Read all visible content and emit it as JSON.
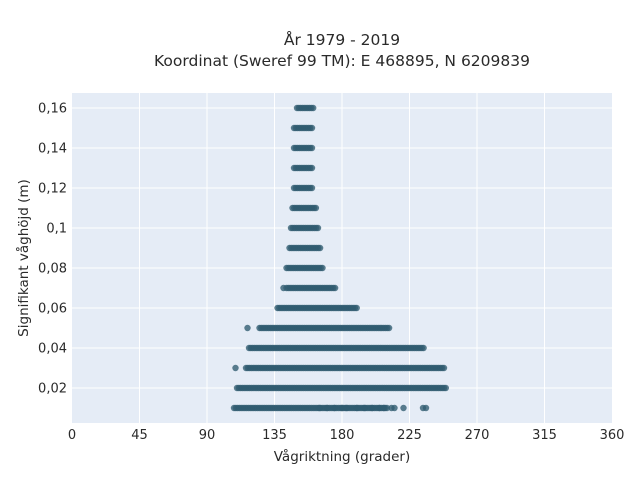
{
  "chart_data": {
    "type": "scatter",
    "title": "År 1979 - 2019",
    "subtitle": "Koordinat (Sweref 99 TM): E 468895, N 6209839",
    "xlabel": "Vågriktning (grader)",
    "ylabel": "Signifikant våghöjd (m)",
    "xlim": [
      0,
      360
    ],
    "ylim": [
      0.0025,
      0.1675
    ],
    "x_ticks": [
      0,
      45,
      90,
      135,
      180,
      225,
      270,
      315,
      360
    ],
    "x_tick_labels": [
      "0",
      "45",
      "90",
      "135",
      "180",
      "225",
      "270",
      "315",
      "360"
    ],
    "y_ticks": [
      0.02,
      0.04,
      0.06,
      0.08,
      0.1,
      0.12,
      0.14,
      0.16
    ],
    "y_tick_labels": [
      "0,02",
      "0,04",
      "0,06",
      "0,08",
      "0,1",
      "0,12",
      "0,14",
      "0,16"
    ],
    "grid": true,
    "marker_color": "#2f5b70",
    "background_color": "#e5ecf6",
    "rows": [
      {
        "y": 0.01,
        "x_min": 108,
        "x_max": 210,
        "outliers": [
          165,
          170,
          175,
          180,
          183,
          190,
          195,
          200,
          205,
          208,
          213,
          215,
          221,
          234,
          236
        ]
      },
      {
        "y": 0.02,
        "x_min": 110,
        "x_max": 250,
        "outliers": []
      },
      {
        "y": 0.03,
        "x_min": 116,
        "x_max": 248,
        "outliers": [
          109
        ]
      },
      {
        "y": 0.04,
        "x_min": 118,
        "x_max": 235,
        "outliers": []
      },
      {
        "y": 0.05,
        "x_min": 125,
        "x_max": 212,
        "outliers": [
          117
        ]
      },
      {
        "y": 0.06,
        "x_min": 137,
        "x_max": 190,
        "outliers": []
      },
      {
        "y": 0.07,
        "x_min": 143,
        "x_max": 176,
        "outliers": [
          141
        ]
      },
      {
        "y": 0.08,
        "x_min": 143,
        "x_max": 168,
        "outliers": []
      },
      {
        "y": 0.09,
        "x_min": 145,
        "x_max": 166,
        "outliers": []
      },
      {
        "y": 0.1,
        "x_min": 146,
        "x_max": 164,
        "outliers": []
      },
      {
        "y": 0.11,
        "x_min": 147,
        "x_max": 163,
        "outliers": []
      },
      {
        "y": 0.12,
        "x_min": 148,
        "x_max": 161,
        "outliers": []
      },
      {
        "y": 0.13,
        "x_min": 148,
        "x_max": 160,
        "outliers": []
      },
      {
        "y": 0.14,
        "x_min": 148,
        "x_max": 160,
        "outliers": []
      },
      {
        "y": 0.15,
        "x_min": 148,
        "x_max": 161,
        "outliers": []
      },
      {
        "y": 0.16,
        "x_min": 150,
        "x_max": 161,
        "outliers": []
      }
    ]
  }
}
